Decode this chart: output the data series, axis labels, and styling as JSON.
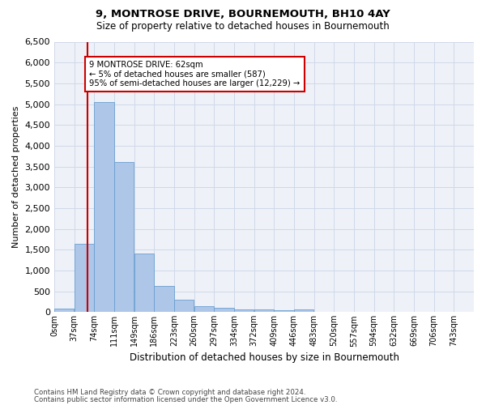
{
  "title": "9, MONTROSE DRIVE, BOURNEMOUTH, BH10 4AY",
  "subtitle": "Size of property relative to detached houses in Bournemouth",
  "xlabel": "Distribution of detached houses by size in Bournemouth",
  "ylabel": "Number of detached properties",
  "footer_line1": "Contains HM Land Registry data © Crown copyright and database right 2024.",
  "footer_line2": "Contains public sector information licensed under the Open Government Licence v3.0.",
  "bar_labels": [
    "0sqm",
    "37sqm",
    "74sqm",
    "111sqm",
    "149sqm",
    "186sqm",
    "223sqm",
    "260sqm",
    "297sqm",
    "334sqm",
    "372sqm",
    "409sqm",
    "446sqm",
    "483sqm",
    "520sqm",
    "557sqm",
    "594sqm",
    "632sqm",
    "669sqm",
    "706sqm",
    "743sqm"
  ],
  "bar_values": [
    75,
    1650,
    5050,
    3600,
    1400,
    620,
    290,
    145,
    105,
    65,
    55,
    45,
    60,
    0,
    0,
    0,
    0,
    0,
    0,
    0,
    0
  ],
  "bar_color": "#aec6e8",
  "bar_edge_color": "#6a9fd0",
  "grid_color": "#d0d8e8",
  "annotation_text": "9 MONTROSE DRIVE: 62sqm\n← 5% of detached houses are smaller (587)\n95% of semi-detached houses are larger (12,229) →",
  "annotation_box_color": "#ffffff",
  "annotation_box_edge": "#cc0000",
  "vline_x": 62,
  "vline_color": "#cc0000",
  "ylim": [
    0,
    6500
  ],
  "bin_width": 37,
  "n_bins": 21,
  "background_color": "#ffffff",
  "plot_bg_color": "#eef2f8"
}
